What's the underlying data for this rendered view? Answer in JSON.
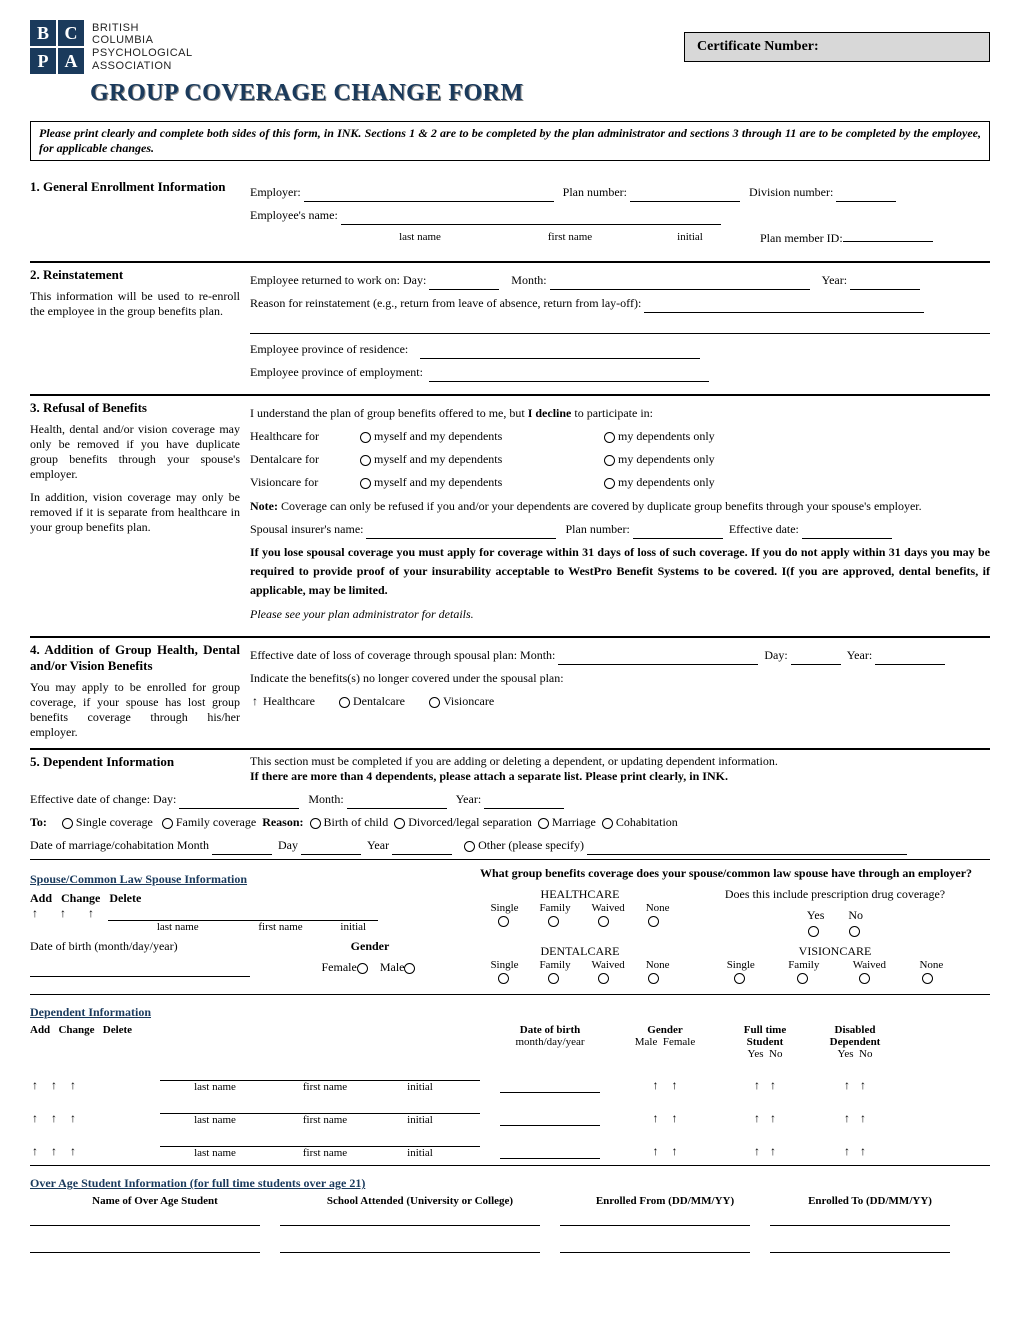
{
  "logo": {
    "cells": [
      "B",
      "C",
      "P",
      "A"
    ],
    "text_lines": [
      "BRITISH",
      "COLUMBIA",
      "PSYCHOLOGICAL",
      "ASSOCIATION"
    ],
    "bg_color": "#1a3a5c"
  },
  "cert_label": "Certificate Number:",
  "title": "GROUP COVERAGE CHANGE FORM",
  "title_color": "#1a3a5c",
  "instructions": "Please print clearly and complete both sides of this form, in INK.  Sections 1 & 2 are to be completed by the plan administrator and sections 3 through 11 are to be completed by the employee, for applicable changes.",
  "s1": {
    "heading": "1. General Enrollment Information",
    "employer": "Employer:",
    "plan_number": "Plan number:",
    "division_number": "Division number:",
    "employee_name": "Employee's name:",
    "last": "last name",
    "first": "first name",
    "initial": "initial",
    "member_id": "Plan member ID:"
  },
  "s2": {
    "heading": "2. Reinstatement",
    "desc": "This information will be used to re-enroll the employee in the group benefits plan.",
    "returned": "Employee returned to work on:  Day:",
    "month": "Month:",
    "year": "Year:",
    "reason": "Reason for reinstatement (e.g., return from leave of absence, return from lay-off):",
    "prov_res": "Employee province of residence:",
    "prov_emp": "Employee province of employment:"
  },
  "s3": {
    "heading": "3. Refusal of Benefits",
    "desc1": "Health, dental and/or vision coverage may only be removed if you have duplicate group benefits through your spouse's employer.",
    "desc2": "In addition, vision coverage may only be removed if it is separate from healthcare in your group benefits plan.",
    "intro": "I understand the plan of group benefits offered to me, but ",
    "intro_bold": "I decline",
    "intro_tail": " to participate in:",
    "rows": [
      {
        "label": "Healthcare for",
        "opt1": "myself and my dependents",
        "opt2": "my dependents only"
      },
      {
        "label": "Dentalcare for",
        "opt1": "myself and my dependents",
        "opt2": "my dependents only"
      },
      {
        "label": "Visioncare for",
        "opt1": "myself and my dependents",
        "opt2": "my dependents only"
      }
    ],
    "note_label": "Note:",
    "note": " Coverage can only be refused if you and/or your dependents are covered by duplicate group benefits through your spouse's employer.",
    "spousal": "Spousal insurer's name:",
    "sp_plan": "Plan number:",
    "sp_eff": "Effective date:",
    "warn": "If you lose spousal coverage you must apply for coverage within 31 days of loss of such coverage.  If you do not apply within 31 days you may be required to provide proof of your insurability acceptable to WestPro Benefit Systems to be covered.  I(f you are approved, dental benefits, if applicable, may be limited.",
    "admin": "Please see your plan administrator for details."
  },
  "s4": {
    "heading": "4. Addition of Group Health, Dental and/or Vision Benefits",
    "desc": "You may apply to be enrolled for group coverage, if your spouse has lost group benefits coverage through his/her employer.",
    "eff": "Effective date of loss of coverage through spousal plan:  Month:",
    "day": "Day:",
    "year": "Year:",
    "indicate": "Indicate the benefits(s) no longer covered under the spousal plan:",
    "opts": [
      "Healthcare",
      "Dentalcare",
      "Visioncare"
    ]
  },
  "s5": {
    "heading": "5. Dependent Information",
    "line1": "This section must be completed if you are adding or deleting a dependent, or updating dependent information.",
    "line2": "If there are more than 4 dependents, please attach a separate list.  Please print clearly, in INK.",
    "eff": "Effective date of change:  Day:",
    "month": "Month:",
    "year": "Year:",
    "to": "To:",
    "to_opts": [
      "Single coverage",
      "Family coverage"
    ],
    "reason": "Reason:",
    "reason_opts": [
      "Birth of child",
      "Divorced/legal separation",
      "Marriage",
      "Cohabitation"
    ],
    "date_marriage": "Date of marriage/cohabitation  Month",
    "dm_day": "Day",
    "dm_year": "Year",
    "other": "Other (please specify)"
  },
  "spouse": {
    "header": "Spouse/Common Law Spouse Information",
    "add": "Add",
    "change": "Change",
    "delete": "Delete",
    "last": "last name",
    "first": "first name",
    "initial": "initial",
    "dob": "Date of birth  (month/day/year)",
    "gender": "Gender",
    "female": "Female",
    "male": "Male",
    "q": "What group benefits coverage does your spouse/common law spouse have through an employer?",
    "hc": "HEALTHCARE",
    "dc": "DENTALCARE",
    "vc": "VISIONCARE",
    "rx": "Does this include prescription drug coverage?",
    "cols": [
      "Single",
      "Family",
      "Waived",
      "None"
    ],
    "yes": "Yes",
    "no": "No"
  },
  "dep": {
    "header": "Dependent Information",
    "add": "Add",
    "change": "Change",
    "delete": "Delete",
    "last": "last name",
    "first": "first name",
    "initial": "initial",
    "dob": "Date of birth",
    "dob2": "month/day/year",
    "gender": "Gender",
    "male": "Male",
    "female": "Female",
    "ft": "Full time",
    "ft2": "Student",
    "dis": "Disabled",
    "dis2": "Dependent",
    "yes": "Yes",
    "no": "No"
  },
  "overage": {
    "header": "Over Age Student Information (for full time students over age 21)",
    "cols": [
      "Name of Over Age Student",
      "School Attended (University or College)",
      "Enrolled From (DD/MM/YY)",
      "Enrolled To (DD/MM/YY)"
    ]
  }
}
